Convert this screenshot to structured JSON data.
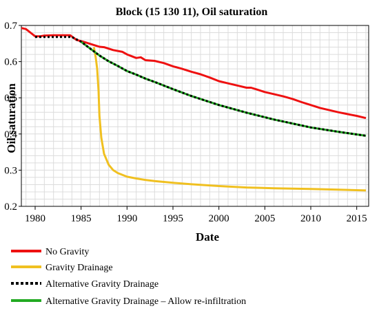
{
  "chart_data": {
    "type": "line",
    "title": "Block  (15 130 11), Oil saturation",
    "xlabel": "Date",
    "ylabel": "Oil saturation",
    "xlim": [
      1978.5,
      2016.3
    ],
    "ylim": [
      0.2,
      0.7
    ],
    "xticks": [
      1980,
      1985,
      1990,
      1995,
      2000,
      2005,
      2010,
      2015
    ],
    "yticks": [
      0.2,
      0.3,
      0.4,
      0.5,
      0.6,
      0.7
    ],
    "ytick_labels": [
      "0.2",
      "0.3",
      "0.4",
      "0.5",
      "0.6",
      "0.7"
    ],
    "grid": true,
    "legend_position": "below",
    "series": [
      {
        "name": "No Gravity",
        "color": "#ee1111",
        "style": "solid",
        "x": [
          1978.5,
          1979.0,
          1979.5,
          1980.0,
          1980.5,
          1981.0,
          1982.0,
          1983.0,
          1983.8,
          1984.5,
          1985.5,
          1986.5,
          1987.0,
          1987.5,
          1988.5,
          1989.5,
          1990.0,
          1990.5,
          1991.0,
          1991.5,
          1992.0,
          1993.0,
          1994.0,
          1995.0,
          1996.0,
          1997.0,
          1998.0,
          1999.0,
          2000.0,
          2001.0,
          2002.0,
          2003.0,
          2003.5,
          2004.0,
          2005.0,
          2006.0,
          2007.0,
          2008.0,
          2009.0,
          2010.0,
          2011.0,
          2012.0,
          2013.0,
          2014.0,
          2015.0,
          2016.0
        ],
        "y": [
          0.693,
          0.69,
          0.68,
          0.67,
          0.67,
          0.672,
          0.673,
          0.673,
          0.673,
          0.66,
          0.653,
          0.645,
          0.641,
          0.64,
          0.632,
          0.627,
          0.62,
          0.615,
          0.61,
          0.612,
          0.604,
          0.602,
          0.596,
          0.587,
          0.58,
          0.572,
          0.565,
          0.556,
          0.546,
          0.54,
          0.534,
          0.528,
          0.528,
          0.524,
          0.516,
          0.51,
          0.504,
          0.497,
          0.488,
          0.48,
          0.472,
          0.466,
          0.46,
          0.455,
          0.45,
          0.444
        ]
      },
      {
        "name": "Gravity Drainage",
        "color": "#f0c020",
        "style": "solid",
        "x": [
          1986.4,
          1986.6,
          1986.75,
          1986.9,
          1987.0,
          1987.2,
          1987.5,
          1988.0,
          1988.5,
          1989.0,
          1990.0,
          1991.0,
          1992.0,
          1993.0,
          1995.0,
          1997.0,
          2000.0,
          2003.0,
          2006.0,
          2010.0,
          2013.0,
          2016.0
        ],
        "y": [
          0.64,
          0.61,
          0.58,
          0.52,
          0.45,
          0.39,
          0.345,
          0.315,
          0.3,
          0.292,
          0.282,
          0.277,
          0.273,
          0.27,
          0.265,
          0.261,
          0.256,
          0.252,
          0.25,
          0.248,
          0.246,
          0.244
        ]
      },
      {
        "name": "Alternative Gravity Drainage",
        "color": "#000000",
        "style": "dotted",
        "x": [
          1980.0,
          1980.5,
          1981.0,
          1982.0,
          1983.0,
          1984.0,
          1985.0,
          1986.0,
          1987.0,
          1988.0,
          1989.0,
          1990.0,
          1991.0,
          1992.0,
          1993.0,
          1995.0,
          1997.0,
          2000.0,
          2003.0,
          2006.0,
          2010.0,
          2013.0,
          2016.0
        ],
        "y": [
          0.668,
          0.668,
          0.668,
          0.668,
          0.668,
          0.668,
          0.655,
          0.636,
          0.617,
          0.601,
          0.588,
          0.574,
          0.564,
          0.553,
          0.544,
          0.524,
          0.505,
          0.48,
          0.459,
          0.44,
          0.418,
          0.406,
          0.395
        ]
      },
      {
        "name": "Alternative Gravity Drainage – Allow re-infiltration",
        "color": "#22aa22",
        "style": "solid",
        "x": [
          1985.0,
          1986.0,
          1987.0,
          1988.0,
          1989.0,
          1990.0,
          1991.0,
          1992.0,
          1993.0,
          1995.0,
          1997.0,
          2000.0,
          2003.0,
          2006.0,
          2010.0,
          2013.0,
          2016.0
        ],
        "y": [
          0.655,
          0.636,
          0.617,
          0.601,
          0.588,
          0.574,
          0.564,
          0.553,
          0.544,
          0.524,
          0.505,
          0.48,
          0.459,
          0.44,
          0.418,
          0.406,
          0.395
        ]
      }
    ]
  }
}
